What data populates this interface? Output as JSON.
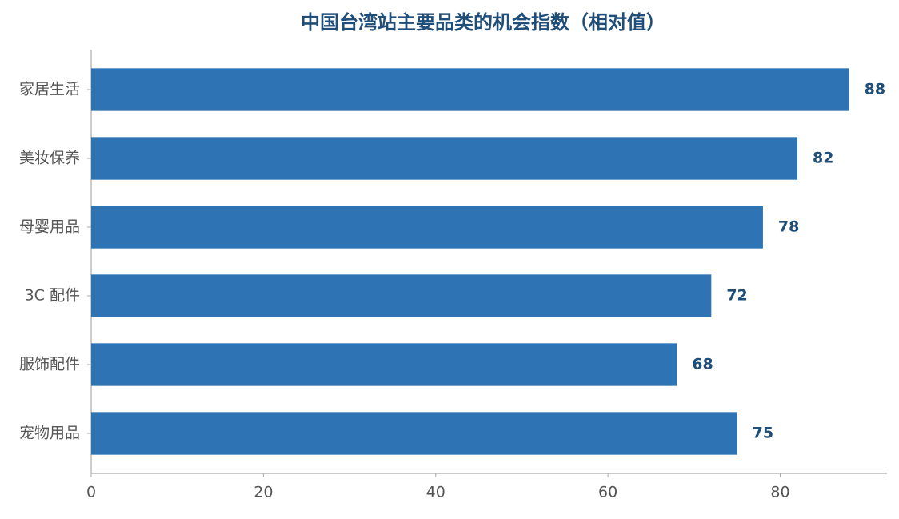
{
  "chart_data": {
    "type": "barh",
    "title": "中国台湾站主要品类的机会指数（相对值）",
    "categories": [
      "家居生活",
      "美妆保养",
      "母婴用品",
      "3C 配件",
      "服饰配件",
      "宠物用品"
    ],
    "values": [
      88,
      82,
      78,
      72,
      68,
      75
    ],
    "color": "#2e74b5",
    "label_color": "#1f4e79",
    "xlim": [
      0,
      92.4
    ],
    "xticks": [
      0,
      20,
      40,
      60,
      80
    ],
    "grid": false
  }
}
